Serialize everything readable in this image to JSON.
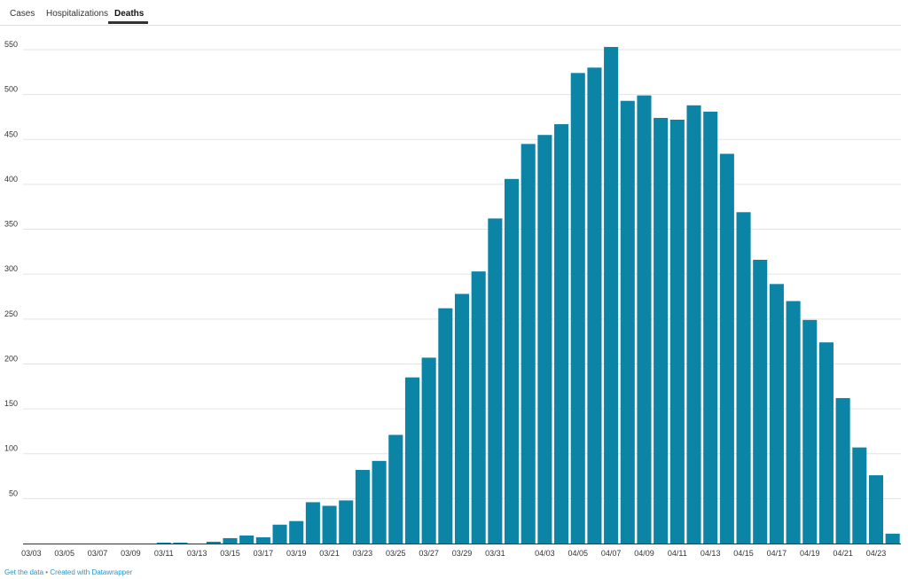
{
  "tabs": [
    {
      "label": "Cases",
      "active": false
    },
    {
      "label": "Hospitalizations",
      "active": false
    },
    {
      "label": "Deaths",
      "active": true
    }
  ],
  "chart_data": {
    "type": "bar",
    "title": "",
    "xlabel": "",
    "ylabel": "",
    "ylim": [
      0,
      560
    ],
    "yticks": [
      50,
      100,
      150,
      200,
      250,
      300,
      350,
      400,
      450,
      500,
      550
    ],
    "grid": true,
    "bar_color": "#0b84a5",
    "categories": [
      "03/03",
      "03/04",
      "03/05",
      "03/06",
      "03/07",
      "03/08",
      "03/09",
      "03/10",
      "03/11",
      "03/12",
      "03/13",
      "03/14",
      "03/15",
      "03/16",
      "03/17",
      "03/18",
      "03/19",
      "03/20",
      "03/21",
      "03/22",
      "03/23",
      "03/24",
      "03/25",
      "03/26",
      "03/27",
      "03/28",
      "03/29",
      "03/30",
      "03/31",
      "04/01",
      "04/02",
      "04/03",
      "04/04",
      "04/05",
      "04/06",
      "04/07",
      "04/08",
      "04/09",
      "04/10",
      "04/11",
      "04/12",
      "04/13",
      "04/14",
      "04/15",
      "04/16",
      "04/17",
      "04/18",
      "04/19",
      "04/20",
      "04/21",
      "04/22",
      "04/23",
      "04/24"
    ],
    "x_tick_labels": [
      "03/03",
      "03/05",
      "03/07",
      "03/09",
      "03/11",
      "03/13",
      "03/15",
      "03/17",
      "03/19",
      "03/21",
      "03/23",
      "03/25",
      "03/27",
      "03/29",
      "03/31",
      "04/03",
      "04/05",
      "04/07",
      "04/09",
      "04/11",
      "04/13",
      "04/15",
      "04/17",
      "04/19",
      "04/21",
      "04/23"
    ],
    "values": [
      0,
      0,
      0,
      0,
      0,
      0,
      0,
      0,
      1,
      1,
      0,
      2,
      6,
      9,
      7,
      21,
      25,
      46,
      42,
      48,
      82,
      92,
      121,
      185,
      207,
      262,
      278,
      303,
      362,
      406,
      445,
      455,
      467,
      524,
      530,
      553,
      493,
      499,
      474,
      472,
      488,
      481,
      434,
      369,
      316,
      289,
      270,
      249,
      224,
      162,
      107,
      76,
      11
    ]
  },
  "footer": {
    "get_data": "Get the data",
    "separator": "•",
    "created_with": "Created with Datawrapper"
  }
}
